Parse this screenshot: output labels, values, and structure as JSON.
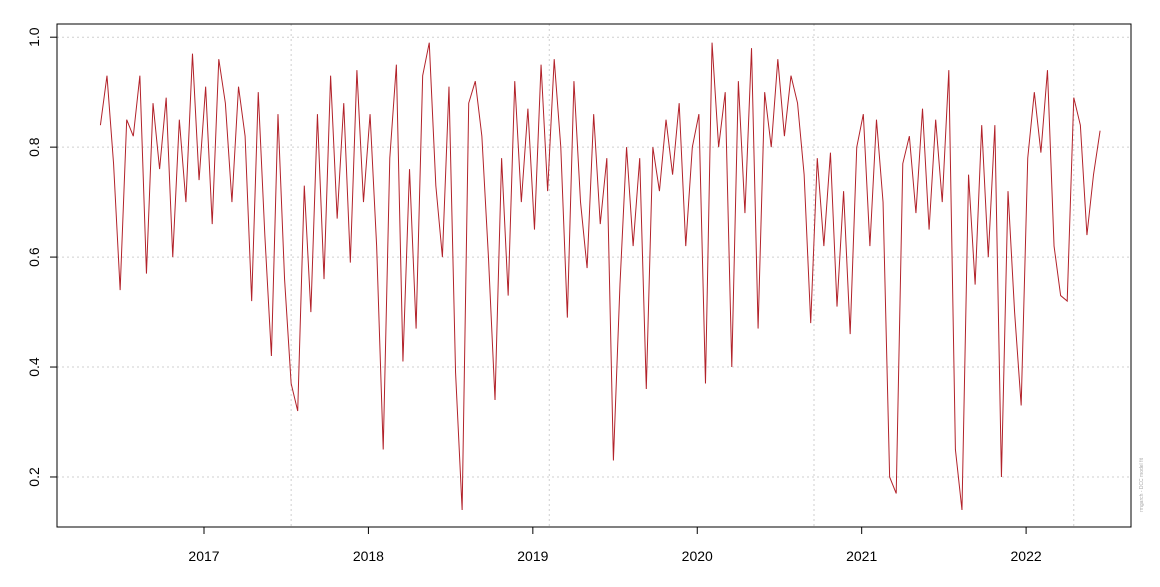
{
  "chart_data": {
    "type": "line",
    "x": [
      2016.37,
      2016.41,
      2016.45,
      2016.49,
      2016.53,
      2016.57,
      2016.61,
      2016.65,
      2016.69,
      2016.73,
      2016.77,
      2016.81,
      2016.85,
      2016.89,
      2016.93,
      2016.97,
      2017.01,
      2017.05,
      2017.09,
      2017.13,
      2017.17,
      2017.21,
      2017.25,
      2017.29,
      2017.33,
      2017.37,
      2017.41,
      2017.45,
      2017.49,
      2017.53,
      2017.57,
      2017.61,
      2017.65,
      2017.69,
      2017.73,
      2017.77,
      2017.81,
      2017.85,
      2017.89,
      2017.93,
      2017.97,
      2018.01,
      2018.05,
      2018.09,
      2018.13,
      2018.17,
      2018.21,
      2018.25,
      2018.29,
      2018.33,
      2018.37,
      2018.41,
      2018.45,
      2018.49,
      2018.53,
      2018.57,
      2018.61,
      2018.65,
      2018.69,
      2018.73,
      2018.77,
      2018.81,
      2018.85,
      2018.89,
      2018.93,
      2018.97,
      2019.01,
      2019.05,
      2019.09,
      2019.13,
      2019.17,
      2019.21,
      2019.25,
      2019.29,
      2019.33,
      2019.37,
      2019.41,
      2019.45,
      2019.49,
      2019.53,
      2019.57,
      2019.61,
      2019.65,
      2019.69,
      2019.73,
      2019.77,
      2019.81,
      2019.85,
      2019.89,
      2019.93,
      2019.97,
      2020.01,
      2020.05,
      2020.09,
      2020.13,
      2020.17,
      2020.21,
      2020.25,
      2020.29,
      2020.33,
      2020.37,
      2020.41,
      2020.45,
      2020.49,
      2020.53,
      2020.57,
      2020.61,
      2020.65,
      2020.69,
      2020.73,
      2020.77,
      2020.81,
      2020.85,
      2020.89,
      2020.93,
      2020.97,
      2021.01,
      2021.05,
      2021.09,
      2021.13,
      2021.17,
      2021.21,
      2021.25,
      2021.29,
      2021.33,
      2021.37,
      2021.41,
      2021.45,
      2021.49,
      2021.53,
      2021.57,
      2021.61,
      2021.65,
      2021.69,
      2021.73,
      2021.77,
      2021.81,
      2021.85,
      2021.89,
      2021.93,
      2021.97,
      2022.01,
      2022.05,
      2022.09,
      2022.13,
      2022.17,
      2022.21,
      2022.25,
      2022.29,
      2022.33,
      2022.37,
      2022.41,
      2022.45
    ],
    "series": [
      {
        "color": "#b2222a",
        "values": [
          0.84,
          0.93,
          0.77,
          0.54,
          0.85,
          0.82,
          0.93,
          0.57,
          0.88,
          0.76,
          0.89,
          0.6,
          0.85,
          0.7,
          0.97,
          0.74,
          0.91,
          0.66,
          0.96,
          0.88,
          0.7,
          0.91,
          0.82,
          0.52,
          0.9,
          0.64,
          0.42,
          0.86,
          0.56,
          0.37,
          0.32,
          0.73,
          0.5,
          0.86,
          0.56,
          0.93,
          0.67,
          0.88,
          0.59,
          0.94,
          0.7,
          0.86,
          0.62,
          0.25,
          0.78,
          0.95,
          0.41,
          0.76,
          0.47,
          0.93,
          0.99,
          0.73,
          0.6,
          0.91,
          0.39,
          0.14,
          0.88,
          0.92,
          0.82,
          0.6,
          0.34,
          0.78,
          0.53,
          0.92,
          0.7,
          0.87,
          0.65,
          0.95,
          0.72,
          0.96,
          0.8,
          0.49,
          0.92,
          0.7,
          0.58,
          0.86,
          0.66,
          0.78,
          0.23,
          0.55,
          0.8,
          0.62,
          0.78,
          0.36,
          0.8,
          0.72,
          0.85,
          0.75,
          0.88,
          0.62,
          0.8,
          0.86,
          0.37,
          0.99,
          0.8,
          0.9,
          0.4,
          0.92,
          0.68,
          0.98,
          0.47,
          0.9,
          0.8,
          0.96,
          0.82,
          0.93,
          0.88,
          0.75,
          0.48,
          0.78,
          0.62,
          0.79,
          0.51,
          0.72,
          0.46,
          0.8,
          0.86,
          0.62,
          0.85,
          0.7,
          0.2,
          0.17,
          0.77,
          0.82,
          0.68,
          0.87,
          0.65,
          0.85,
          0.7,
          0.94,
          0.25,
          0.14,
          0.75,
          0.55,
          0.84,
          0.6,
          0.84,
          0.2,
          0.72,
          0.5,
          0.33,
          0.78,
          0.9,
          0.79,
          0.94,
          0.62,
          0.53,
          0.52,
          0.89,
          0.84,
          0.64,
          0.75,
          0.83
        ]
      }
    ],
    "xlim": [
      2016.106,
      2022.638
    ],
    "xticks": [
      2017,
      2018,
      2019,
      2020,
      2021,
      2022
    ],
    "ylim": [
      0.109,
      1.024
    ],
    "yticks": [
      0.2,
      0.4,
      0.6,
      {
        "value": 1,
        "label": "1.0"
      }
    ],
    "yticks_more": [
      0.8
    ],
    "vlines": [
      2017.53,
      2019.1,
      2020.71,
      2022.29
    ],
    "grid": true,
    "watermark": "rmgarch - DCC model fit"
  }
}
